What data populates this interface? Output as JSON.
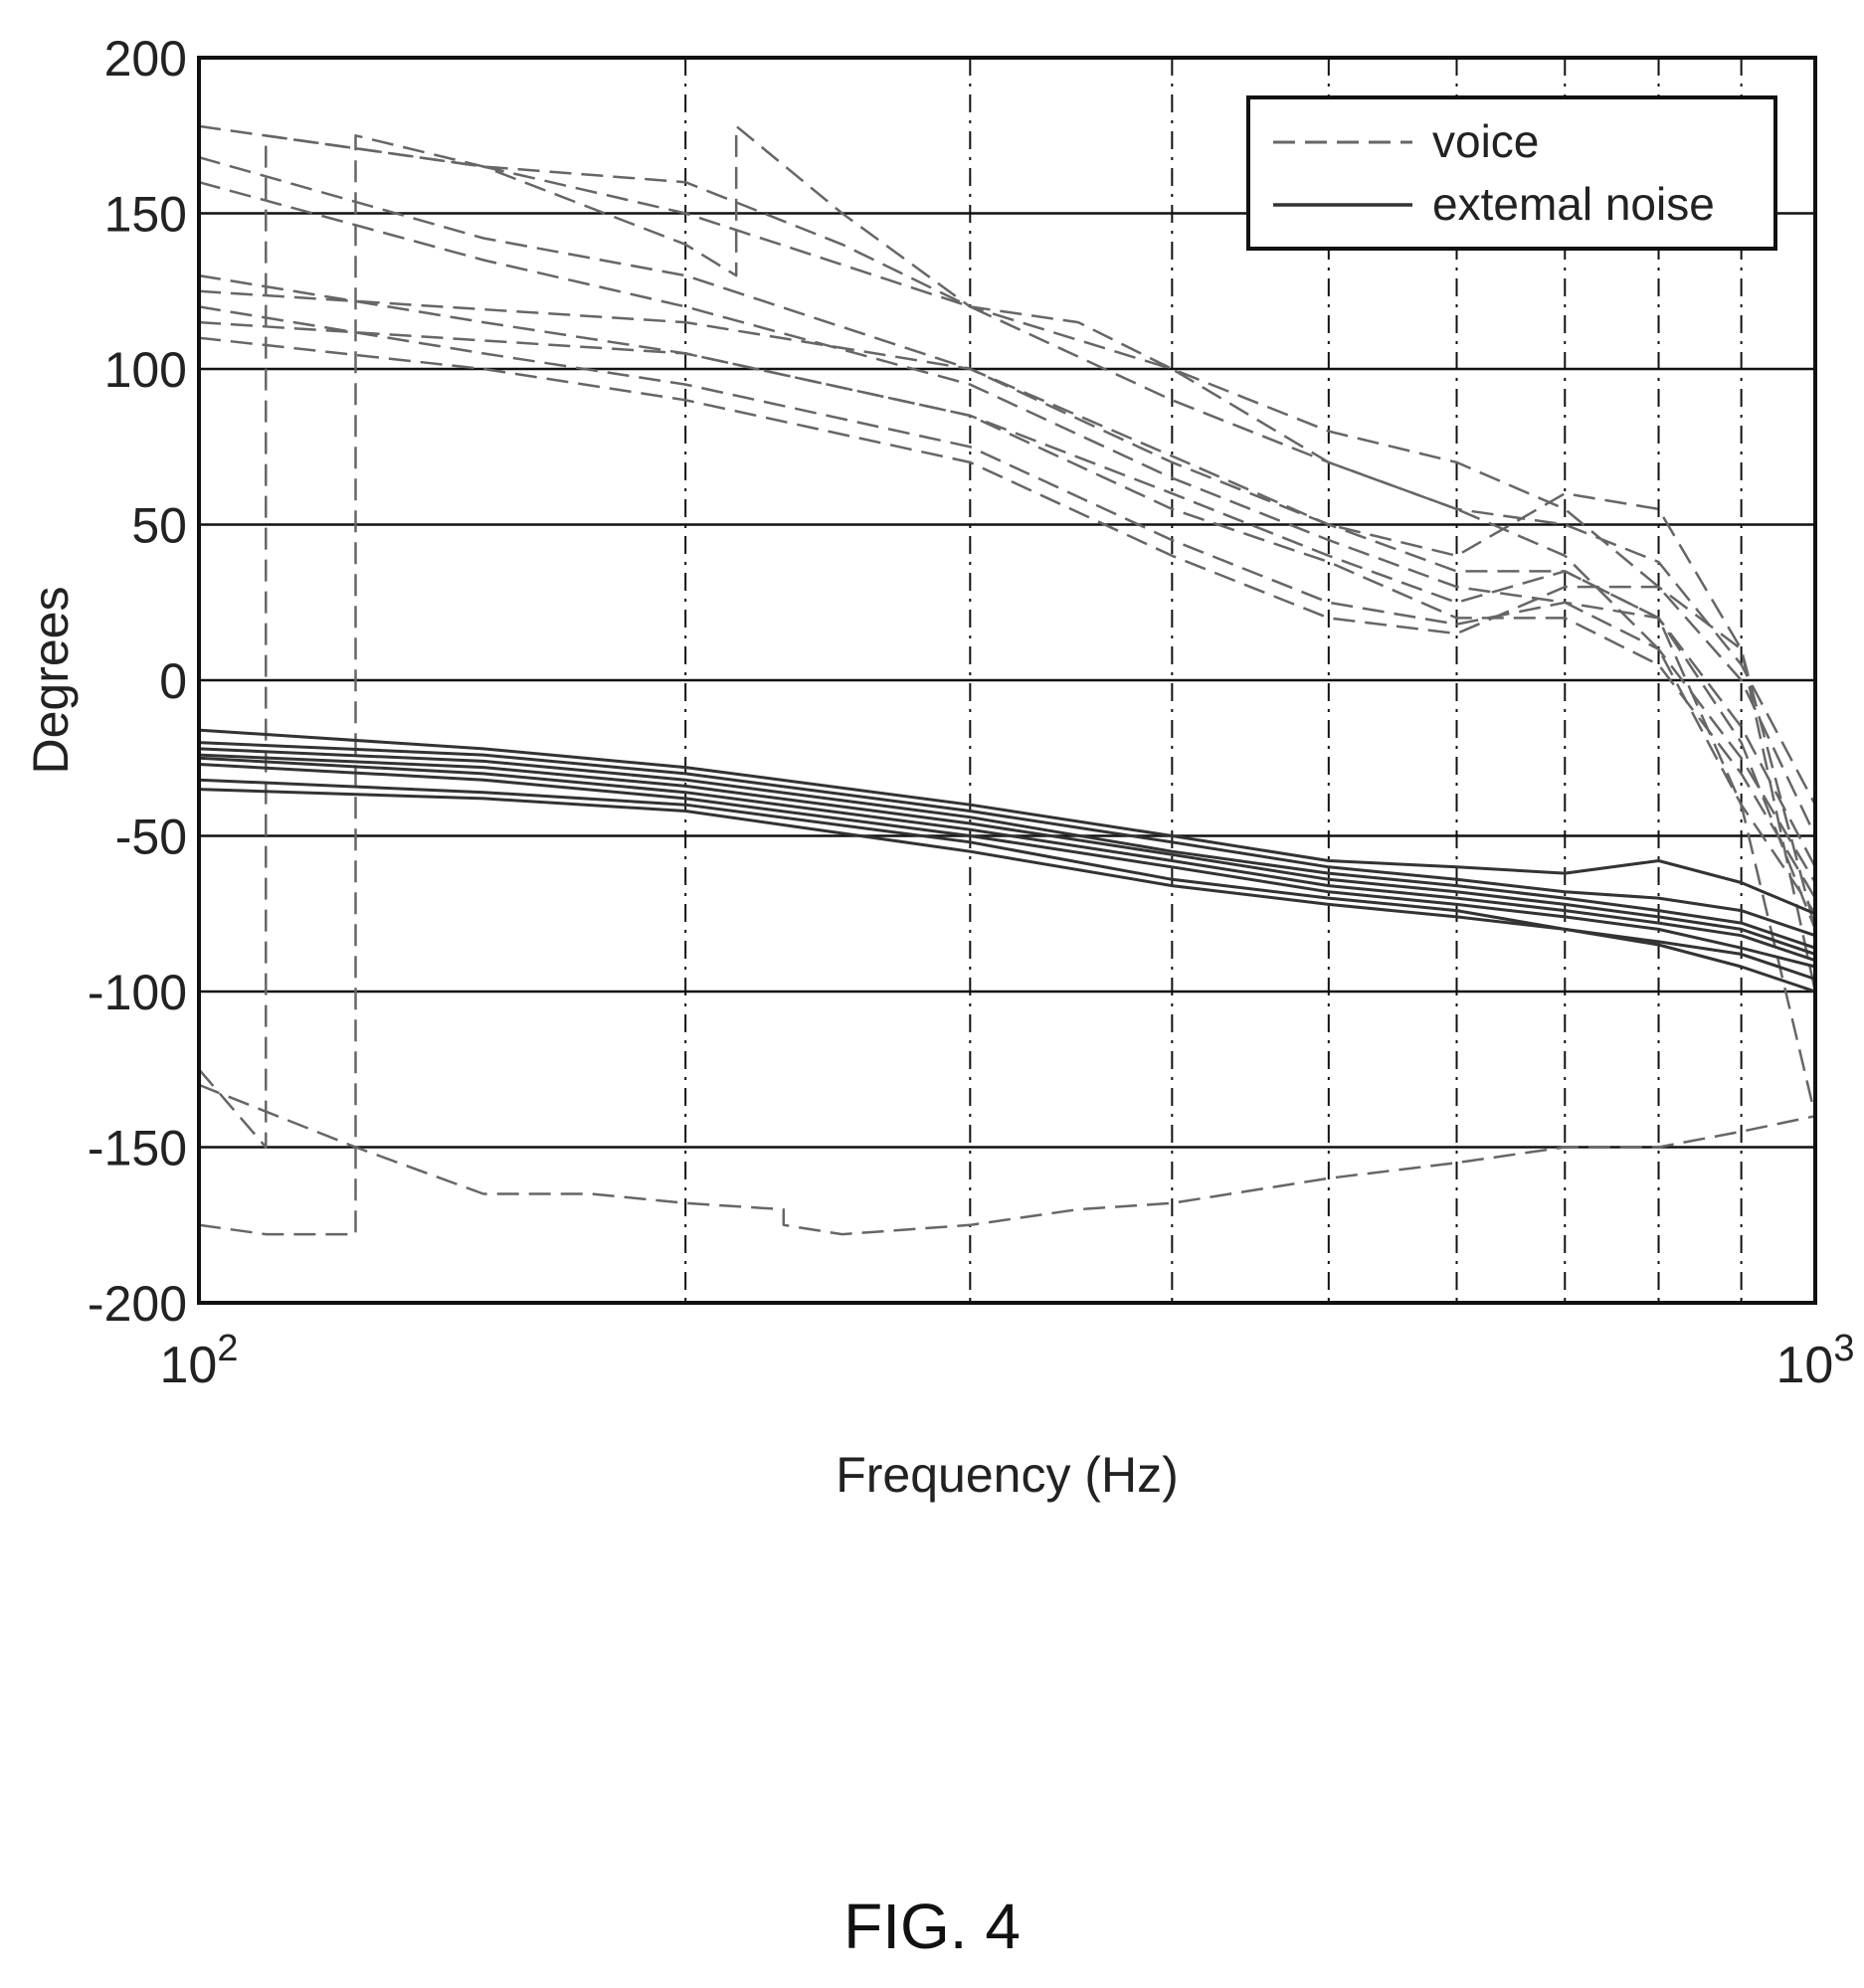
{
  "figure_label": "FIG. 4",
  "colors": {
    "voice": "#666666",
    "noise": "#333333",
    "grid": "#111111",
    "axis": "#111111"
  },
  "chart_data": {
    "type": "line",
    "title": "",
    "xlabel": "Frequency (Hz)",
    "ylabel": "Degrees",
    "x_scale": "log",
    "xlim": [
      100,
      1000
    ],
    "ylim": [
      -200,
      200
    ],
    "x_ticks": [
      {
        "value": 100,
        "base": "10",
        "exp": "2"
      },
      {
        "value": 1000,
        "base": "10",
        "exp": "3"
      }
    ],
    "y_ticks": [
      {
        "value": 200,
        "label": "200"
      },
      {
        "value": 150,
        "label": "150"
      },
      {
        "value": 100,
        "label": "100"
      },
      {
        "value": 50,
        "label": "50"
      },
      {
        "value": 0,
        "label": "0"
      },
      {
        "value": -50,
        "label": "-50"
      },
      {
        "value": -100,
        "label": "-100"
      },
      {
        "value": -150,
        "label": "-150"
      },
      {
        "value": -200,
        "label": "-200"
      }
    ],
    "x_minor_grid": [
      200,
      300,
      400,
      500,
      600,
      700,
      800,
      900
    ],
    "grid": true,
    "legend": {
      "position": "top-right",
      "entries": [
        {
          "label": "voice",
          "style": "dashed"
        },
        {
          "label": "extemal noise",
          "style": "solid"
        }
      ]
    },
    "series": [
      {
        "group": "voice",
        "x": [
          100,
          150,
          200,
          300,
          400,
          500,
          600,
          700,
          800,
          900,
          1000
        ],
        "y": [
          178,
          165,
          150,
          120,
          90,
          70,
          55,
          50,
          38,
          5,
          -40
        ]
      },
      {
        "group": "voice",
        "x": [
          100,
          150,
          200,
          300,
          400,
          500,
          600,
          700,
          800,
          900,
          1000
        ],
        "y": [
          168,
          142,
          130,
          100,
          72,
          50,
          35,
          35,
          20,
          -15,
          -60
        ]
      },
      {
        "group": "voice",
        "x": [
          100,
          150,
          200,
          300,
          400,
          500,
          600,
          700,
          800,
          900,
          1000
        ],
        "y": [
          160,
          135,
          120,
          95,
          65,
          45,
          30,
          25,
          10,
          -25,
          -65
        ]
      },
      {
        "group": "voice",
        "x": [
          100,
          150,
          200,
          300,
          400,
          500,
          600,
          700,
          800,
          900,
          1000
        ],
        "y": [
          130,
          115,
          105,
          85,
          55,
          38,
          20,
          20,
          5,
          -30,
          -70
        ]
      },
      {
        "group": "voice",
        "x": [
          100,
          150,
          200,
          300,
          400,
          500,
          600,
          700,
          800,
          900,
          1000
        ],
        "y": [
          120,
          105,
          95,
          75,
          45,
          25,
          18,
          25,
          20,
          -20,
          -80
        ]
      },
      {
        "group": "voice",
        "x": [
          100,
          150,
          200,
          300,
          400,
          500,
          600,
          700,
          800,
          900,
          1000
        ],
        "y": [
          110,
          100,
          90,
          70,
          40,
          20,
          15,
          30,
          30,
          10,
          -100
        ]
      },
      {
        "group": "voice",
        "x": [
          100,
          200,
          300,
          400,
          500,
          600,
          700,
          800,
          900,
          1000
        ],
        "y": [
          125,
          115,
          100,
          70,
          50,
          40,
          60,
          55,
          10,
          -80
        ]
      },
      {
        "group": "voice",
        "x": [
          100,
          200,
          300,
          400,
          500,
          600,
          700,
          800,
          900,
          1000
        ],
        "y": [
          115,
          105,
          85,
          60,
          40,
          25,
          35,
          20,
          -40,
          -140
        ]
      },
      {
        "group": "voice",
        "x": [
          100,
          110,
          110,
          150,
          200,
          250,
          300,
          350,
          400,
          500,
          600,
          700,
          800,
          900,
          1000
        ],
        "y": [
          -125,
          -150,
          175,
          165,
          160,
          140,
          120,
          115,
          100,
          80,
          70,
          55,
          30,
          0,
          -50
        ]
      },
      {
        "group": "voice",
        "x": [
          100,
          110,
          125,
          125,
          150,
          200,
          215,
          215,
          250,
          300,
          400,
          500,
          600,
          700,
          800,
          900,
          1000
        ],
        "y": [
          -175,
          -178,
          -178,
          175,
          165,
          140,
          130,
          178,
          150,
          120,
          100,
          70,
          55,
          40,
          10,
          -40,
          -75
        ]
      },
      {
        "group": "voice",
        "x": [
          100,
          125,
          150,
          175,
          200,
          230,
          230,
          250,
          300,
          350,
          400,
          500,
          600,
          700,
          800,
          900,
          1000
        ],
        "y": [
          -130,
          -150,
          -165,
          -165,
          -168,
          -170,
          -175,
          -178,
          -175,
          -170,
          -168,
          -160,
          -155,
          -150,
          -150,
          -145,
          -140
        ]
      },
      {
        "group": "noise",
        "x": [
          100,
          150,
          200,
          300,
          400,
          500,
          600,
          700,
          800,
          900,
          1000
        ],
        "y": [
          -16,
          -22,
          -28,
          -40,
          -50,
          -58,
          -60,
          -62,
          -58,
          -65,
          -75
        ]
      },
      {
        "group": "noise",
        "x": [
          100,
          150,
          200,
          300,
          400,
          500,
          600,
          700,
          800,
          900,
          1000
        ],
        "y": [
          -20,
          -24,
          -30,
          -42,
          -52,
          -60,
          -64,
          -68,
          -70,
          -74,
          -82
        ]
      },
      {
        "group": "noise",
        "x": [
          100,
          150,
          200,
          300,
          400,
          500,
          600,
          700,
          800,
          900,
          1000
        ],
        "y": [
          -22,
          -26,
          -32,
          -44,
          -55,
          -62,
          -66,
          -70,
          -74,
          -78,
          -86
        ]
      },
      {
        "group": "noise",
        "x": [
          100,
          150,
          200,
          300,
          400,
          500,
          600,
          700,
          800,
          900,
          1000
        ],
        "y": [
          -24,
          -28,
          -34,
          -46,
          -56,
          -64,
          -68,
          -72,
          -76,
          -80,
          -88
        ]
      },
      {
        "group": "noise",
        "x": [
          100,
          150,
          200,
          300,
          400,
          500,
          600,
          700,
          800,
          900,
          1000
        ],
        "y": [
          -25,
          -30,
          -36,
          -48,
          -58,
          -66,
          -70,
          -74,
          -78,
          -82,
          -90
        ]
      },
      {
        "group": "noise",
        "x": [
          100,
          150,
          200,
          300,
          400,
          500,
          600,
          700,
          800,
          900,
          1000
        ],
        "y": [
          -27,
          -32,
          -38,
          -50,
          -60,
          -68,
          -72,
          -76,
          -80,
          -86,
          -92
        ]
      },
      {
        "group": "noise",
        "x": [
          100,
          150,
          200,
          300,
          400,
          500,
          600,
          700,
          800,
          900,
          1000
        ],
        "y": [
          -35,
          -38,
          -42,
          -55,
          -66,
          -72,
          -76,
          -80,
          -84,
          -88,
          -96
        ]
      },
      {
        "group": "noise",
        "x": [
          100,
          150,
          200,
          300,
          400,
          500,
          600,
          700,
          800,
          900,
          1000
        ],
        "y": [
          -32,
          -36,
          -40,
          -52,
          -64,
          -70,
          -74,
          -80,
          -85,
          -92,
          -100
        ]
      }
    ]
  }
}
